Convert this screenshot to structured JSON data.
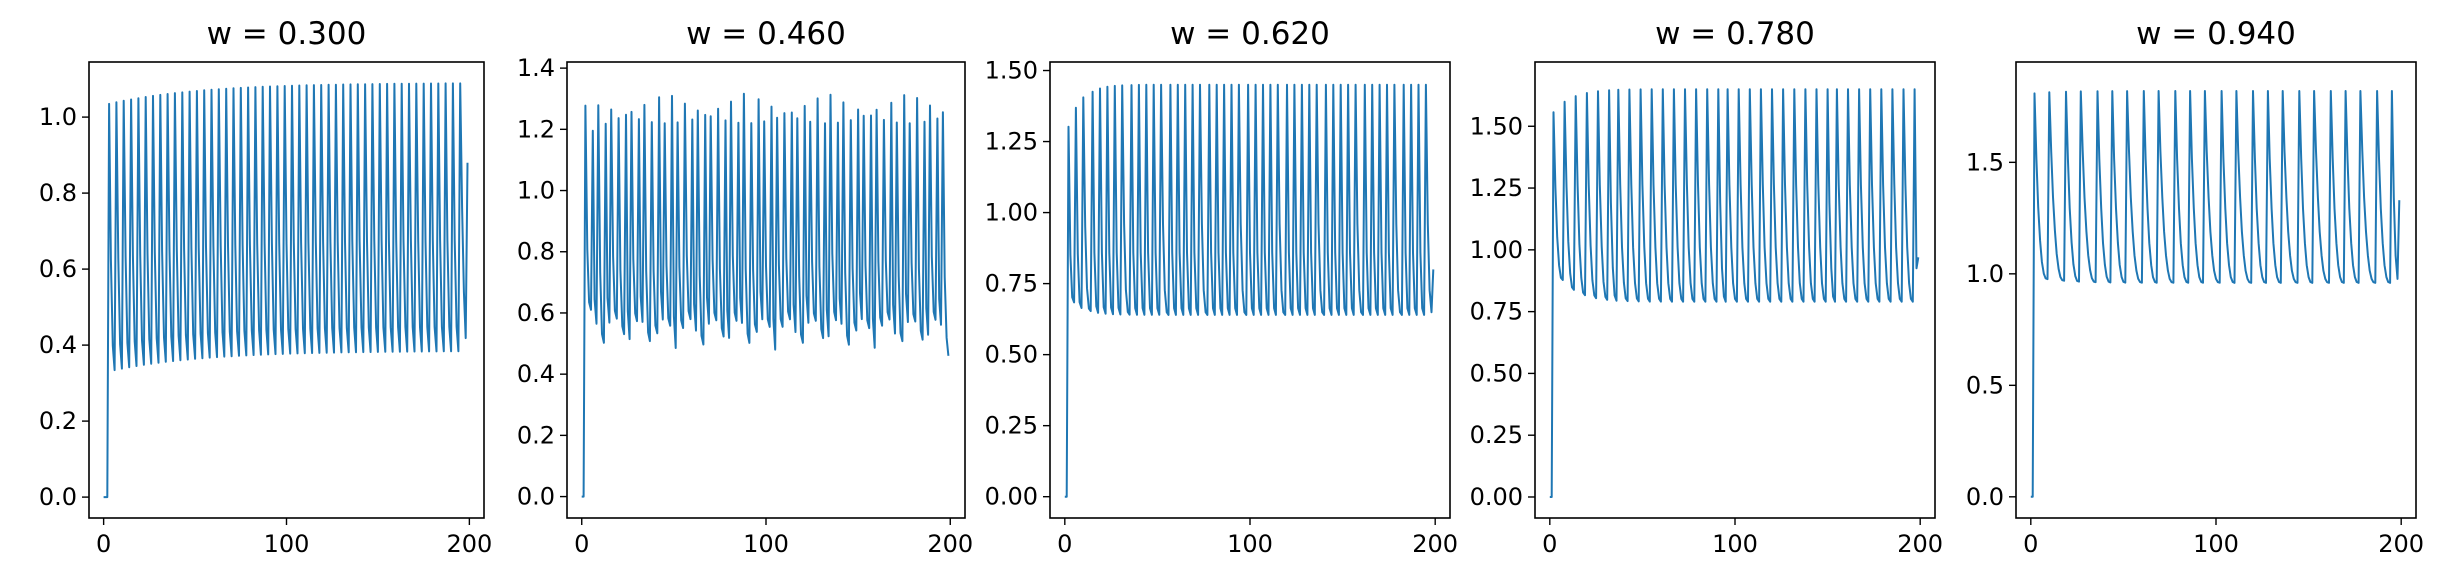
{
  "colors": {
    "series": "#1f77b4",
    "frame": "#000000",
    "background": "#ffffff"
  },
  "chart_data": [
    {
      "type": "line",
      "title": "w =  0.300",
      "xlabel": "",
      "ylabel": "",
      "xlim": [
        -8,
        208
      ],
      "ylim": [
        -0.055,
        1.145
      ],
      "xticks": [
        0,
        100,
        200
      ],
      "xtick_labels": [
        "0",
        "100",
        "200"
      ],
      "yticks": [
        0,
        0.2,
        0.4,
        0.6,
        0.8,
        1.0
      ],
      "ytick_labels": [
        "0.0",
        "0.2",
        "0.4",
        "0.6",
        "0.8",
        "1.0"
      ],
      "grid": false,
      "series": [
        {
          "signal": {
            "n": 200,
            "start": 0.0,
            "first_spike": 3,
            "period": 4,
            "decay": 0.85,
            "hi_steady": 1.09,
            "hi_first": 1.03,
            "lo_steady": 0.385,
            "lo_first": 0.33,
            "converge_rate": 0.08,
            "final": 0.88
          }
        }
      ]
    },
    {
      "type": "line",
      "title": "w =  0.460",
      "xlabel": "",
      "ylabel": "",
      "xlim": [
        -8,
        208
      ],
      "ylim": [
        -0.07,
        1.42
      ],
      "xticks": [
        0,
        100,
        200
      ],
      "xtick_labels": [
        "0",
        "100",
        "200"
      ],
      "yticks": [
        0,
        0.2,
        0.4,
        0.6,
        0.8,
        1.0,
        1.2,
        1.4
      ],
      "ytick_labels": [
        "0.0",
        "0.2",
        "0.4",
        "0.6",
        "0.8",
        "1.0",
        "1.2",
        "1.4"
      ],
      "grid": false,
      "series": [
        {
          "signal": {
            "n": 200,
            "start": 0.0,
            "first_spike": 2,
            "period": 3.6,
            "decay": 0.5,
            "hi_steady": 1.32,
            "hi_first": 1.25,
            "lo_steady": 0.48,
            "lo_first": 0.53,
            "converge_rate": 0.5,
            "jitter": 0.1,
            "final": 0.46
          }
        }
      ]
    },
    {
      "type": "line",
      "title": "w =  0.620",
      "xlabel": "",
      "ylabel": "",
      "xlim": [
        -8,
        208
      ],
      "ylim": [
        -0.075,
        1.53
      ],
      "xticks": [
        0,
        100,
        200
      ],
      "xtick_labels": [
        "0",
        "100",
        "200"
      ],
      "yticks": [
        0,
        0.25,
        0.5,
        0.75,
        1.0,
        1.25,
        1.5
      ],
      "ytick_labels": [
        "0.00",
        "0.25",
        "0.50",
        "0.75",
        "1.00",
        "1.25",
        "1.50"
      ],
      "grid": false,
      "series": [
        {
          "signal": {
            "n": 200,
            "start": 0.0,
            "first_spike": 2,
            "period": 4.2,
            "decay": 0.45,
            "hi_steady": 1.45,
            "hi_first": 1.18,
            "lo_steady": 0.64,
            "lo_first": 0.72,
            "converge_rate": 0.6,
            "final": 0.8
          }
        }
      ]
    },
    {
      "type": "line",
      "title": "w =  0.780",
      "xlabel": "",
      "ylabel": "",
      "xlim": [
        -8,
        208
      ],
      "ylim": [
        -0.085,
        1.76
      ],
      "xticks": [
        0,
        100,
        200
      ],
      "xtick_labels": [
        "0",
        "100",
        "200"
      ],
      "yticks": [
        0,
        0.25,
        0.5,
        0.75,
        1.0,
        1.25,
        1.5
      ],
      "ytick_labels": [
        "0.00",
        "0.25",
        "0.50",
        "0.75",
        "1.00",
        "1.25",
        "1.50"
      ],
      "grid": false,
      "series": [
        {
          "signal": {
            "n": 200,
            "start": 0.0,
            "first_spike": 2,
            "period": 5.9,
            "decay": 0.6,
            "hi_steady": 1.65,
            "hi_first": 1.48,
            "lo_steady": 0.79,
            "lo_first": 0.95,
            "converge_rate": 0.6,
            "final": 0.97
          }
        }
      ]
    },
    {
      "type": "line",
      "title": "w =  0.940",
      "xlabel": "",
      "ylabel": "",
      "xlim": [
        -8,
        208
      ],
      "ylim": [
        -0.095,
        1.95
      ],
      "xticks": [
        0,
        100,
        200
      ],
      "xtick_labels": [
        "0",
        "100",
        "200"
      ],
      "yticks": [
        0,
        0.5,
        1.0,
        1.5
      ],
      "ytick_labels": [
        "0.0",
        "0.5",
        "1.0",
        "1.5"
      ],
      "grid": false,
      "series": [
        {
          "signal": {
            "n": 200,
            "start": 0.0,
            "first_spike": 2,
            "period": 8.4,
            "decay": 0.55,
            "hi_steady": 1.82,
            "hi_first": 1.8,
            "lo_steady": 0.96,
            "lo_first": 0.99,
            "converge_rate": 0.6,
            "final": 1.33
          }
        }
      ]
    }
  ]
}
